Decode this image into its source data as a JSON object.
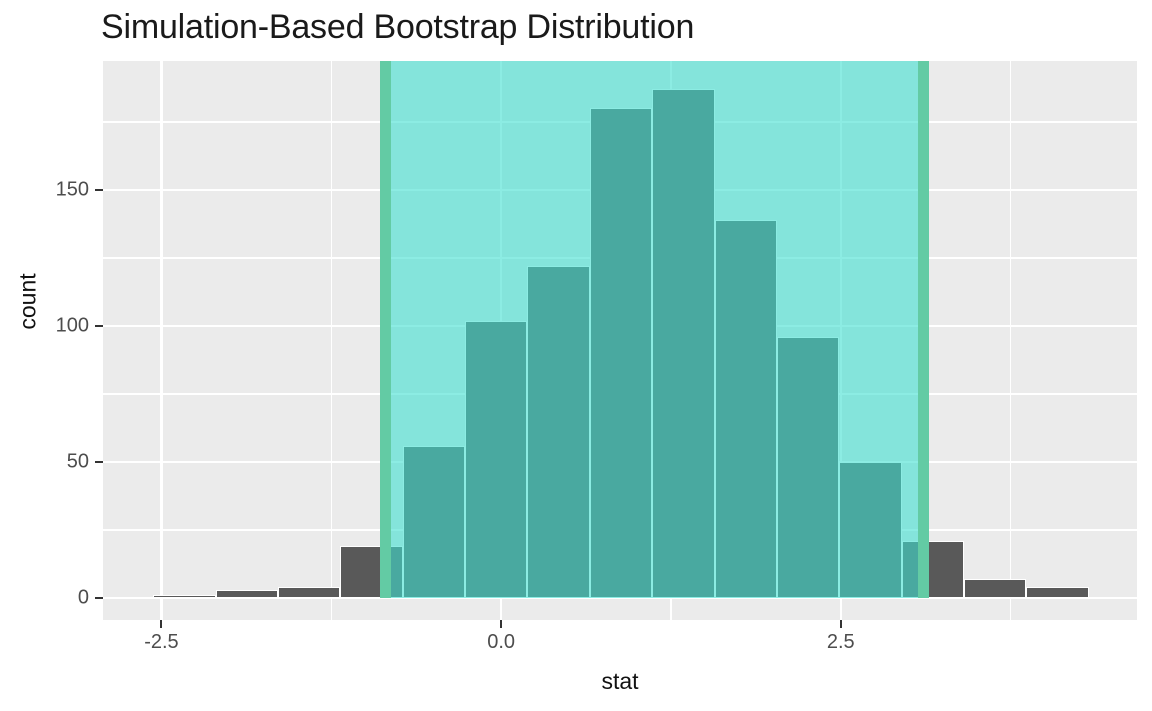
{
  "title": "Simulation-Based Bootstrap Distribution",
  "chart_data": {
    "type": "bar",
    "subtype": "histogram",
    "title": "Simulation-Based Bootstrap Distribution",
    "xlabel": "stat",
    "ylabel": "count",
    "bins": {
      "start": -2.56,
      "binwidth": 0.459,
      "counts": [
        1,
        3,
        4,
        19,
        56,
        102,
        122,
        180,
        187,
        139,
        96,
        50,
        21,
        7,
        4
      ]
    },
    "x_axis": {
      "tick_values": [
        -2.5,
        0.0,
        2.5
      ],
      "tick_labels": [
        "-2.5",
        "0.0",
        "2.5"
      ],
      "minor_ticks": [
        -1.25,
        1.25,
        3.75
      ],
      "range": [
        -2.93,
        4.68
      ]
    },
    "y_axis": {
      "tick_values": [
        0,
        50,
        100,
        150
      ],
      "tick_labels": [
        "0",
        "50",
        "100",
        "150"
      ],
      "minor_ticks": [
        25,
        75,
        125,
        175
      ],
      "range": [
        -8.1,
        197.4
      ]
    },
    "confidence_interval": {
      "lower": -0.85,
      "upper": 3.11
    },
    "grid": "on",
    "legend": "none",
    "colors": {
      "bar_fill": "#595959",
      "bar_outline": "#ffffff",
      "shade_fill": "rgba(64,224,208,0.6)",
      "ci_line": "#63cba4",
      "panel_bg": "#ebebeb",
      "gridline": "#ffffff",
      "tick_mark": "#333333",
      "tick_label": "#4d4d4d",
      "axis_title": "#111111",
      "title": "#1a1a1a"
    }
  }
}
